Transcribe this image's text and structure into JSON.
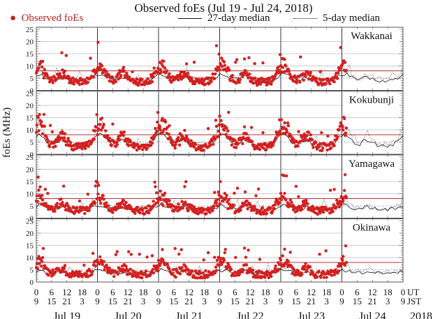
{
  "chart_data": {
    "type": "scatter",
    "title": "Observed foEs (Jul 19 - Jul 24, 2018)",
    "ylabel": "foEs (MHz)",
    "xlabel_year": "2018",
    "ylim": [
      0,
      25
    ],
    "yticks": [
      "0",
      "5",
      "10",
      "15",
      "20",
      "25"
    ],
    "xtick_ut": [
      "0",
      "6",
      "12",
      "18",
      "0",
      "6",
      "12",
      "18",
      "0",
      "6",
      "12",
      "18",
      "0",
      "6",
      "12",
      "18",
      "0",
      "6",
      "12",
      "18",
      "0",
      "6",
      "12",
      "18",
      "0"
    ],
    "xtick_jst": [
      "9",
      "15",
      "21",
      "3",
      "9",
      "15",
      "21",
      "3",
      "9",
      "15",
      "21",
      "3",
      "9",
      "15",
      "21",
      "3",
      "9",
      "15",
      "21",
      "3",
      "9",
      "15",
      "21",
      "3",
      "9"
    ],
    "ut_label": "UT",
    "jst_label": "JST",
    "days": [
      "Jul 19",
      "Jul 20",
      "Jul 21",
      "Jul 22",
      "Jul 23",
      "Jul 24"
    ],
    "reference_lines": {
      "red_mhz": 8,
      "dashed_mhz": 5
    },
    "legend": {
      "observed": "Observed foEs",
      "median27": "27-day median",
      "median5": "5-day median",
      "placement": "top"
    },
    "colors": {
      "observed": "#d42020",
      "median": "#111111",
      "grid": "#bbbbbb",
      "redline": "#b03030"
    },
    "hours_total": 144,
    "observed_until_hour": 122,
    "stations": [
      {
        "name": "Wakkanai",
        "seed": 11,
        "base": 5.5,
        "amp": 4.0,
        "obs_amp": 7.0
      },
      {
        "name": "Kokubunji",
        "seed": 23,
        "base": 5.0,
        "amp": 7.0,
        "obs_amp": 9.5
      },
      {
        "name": "Yamagawa",
        "seed": 37,
        "base": 5.0,
        "amp": 2.5,
        "obs_amp": 6.0
      },
      {
        "name": "Okinawa",
        "seed": 53,
        "base": 5.0,
        "amp": 2.0,
        "obs_amp": 5.5
      }
    ]
  }
}
